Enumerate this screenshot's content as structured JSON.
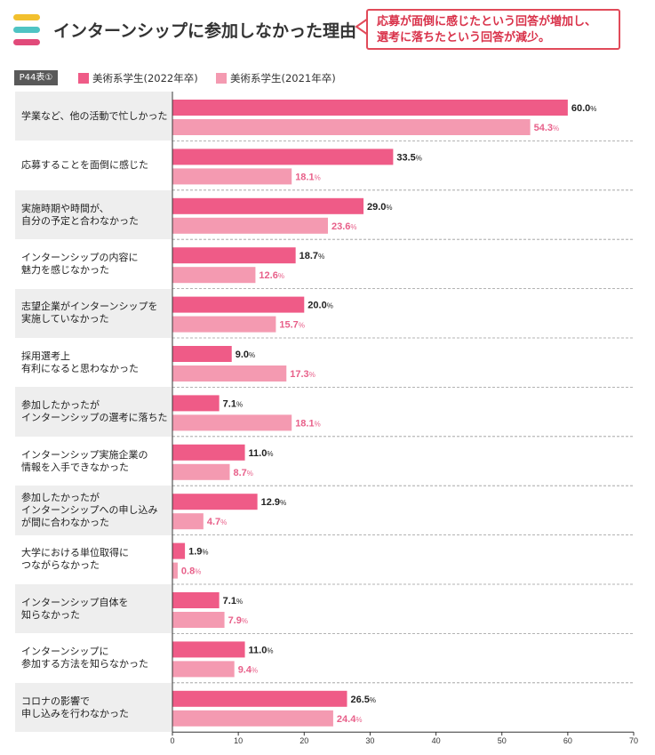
{
  "header": {
    "title": "インターンシップに参加しなかった理由",
    "callout_line1": "応募が面倒に感じたという回答が増加し、",
    "callout_line2": "選考に落ちたという回答が減少。",
    "stripe_colors": [
      "#f2c02e",
      "#4fc4c4",
      "#e14a7a"
    ]
  },
  "legend": {
    "table_tag": "P44表①",
    "items": [
      {
        "label": "美術系学生(2022年卒)",
        "color": "#ef5b87"
      },
      {
        "label": "美術系学生(2021年卒)",
        "color": "#f49ab1"
      }
    ]
  },
  "chart_data": {
    "type": "bar",
    "orientation": "horizontal",
    "categories": [
      "学業など、他の活動で忙しかった",
      "応募することを面倒に感じた",
      "実施時期や時間が、\n自分の予定と合わなかった",
      "インターンシップの内容に\n魅力を感じなかった",
      "志望企業がインターンシップを\n実施していなかった",
      "採用選考上\n有利になると思わなかった",
      "参加したかったが\nインターンシップの選考に落ちた",
      "インターンシップ実施企業の\n情報を入手できなかった",
      "参加したかったが\nインターンシップへの申し込み\nが間に合わなかった",
      "大学における単位取得に\nつながらなかった",
      "インターンシップ自体を\n知らなかった",
      "インターンシップに\n参加する方法を知らなかった",
      "コロナの影響で\n申し込みを行わなかった"
    ],
    "series": [
      {
        "name": "美術系学生(2022年卒)",
        "color": "#ef5b87",
        "values": [
          60.0,
          33.5,
          29.0,
          18.7,
          20.0,
          9.0,
          7.1,
          11.0,
          12.9,
          1.9,
          7.1,
          11.0,
          26.5
        ],
        "labels": [
          "60.0",
          "33.5",
          "29.0",
          "18.7",
          "20.0",
          "9.0",
          "7.1",
          "11.0",
          "12.9",
          "1.9",
          "7.1",
          "11.0",
          "26.5"
        ]
      },
      {
        "name": "美術系学生(2021年卒)",
        "color": "#f49ab1",
        "values": [
          54.3,
          18.1,
          23.6,
          12.6,
          15.7,
          17.3,
          18.1,
          8.7,
          4.7,
          0.8,
          7.9,
          9.4,
          24.4
        ],
        "labels": [
          "54.3",
          "18.1",
          "23.6",
          "12.6",
          "15.7",
          "17.3",
          "18.1",
          "8.7",
          "4.7",
          "0.8",
          "7.9",
          "9.4",
          "24.4"
        ]
      }
    ],
    "unit": "%",
    "xlim": [
      0,
      70
    ],
    "xticks": [
      "0",
      "10",
      "20",
      "30",
      "40",
      "50",
      "60",
      "70"
    ],
    "label_colors": {
      "primary": "#222222",
      "secondary": "#e8608a"
    }
  }
}
